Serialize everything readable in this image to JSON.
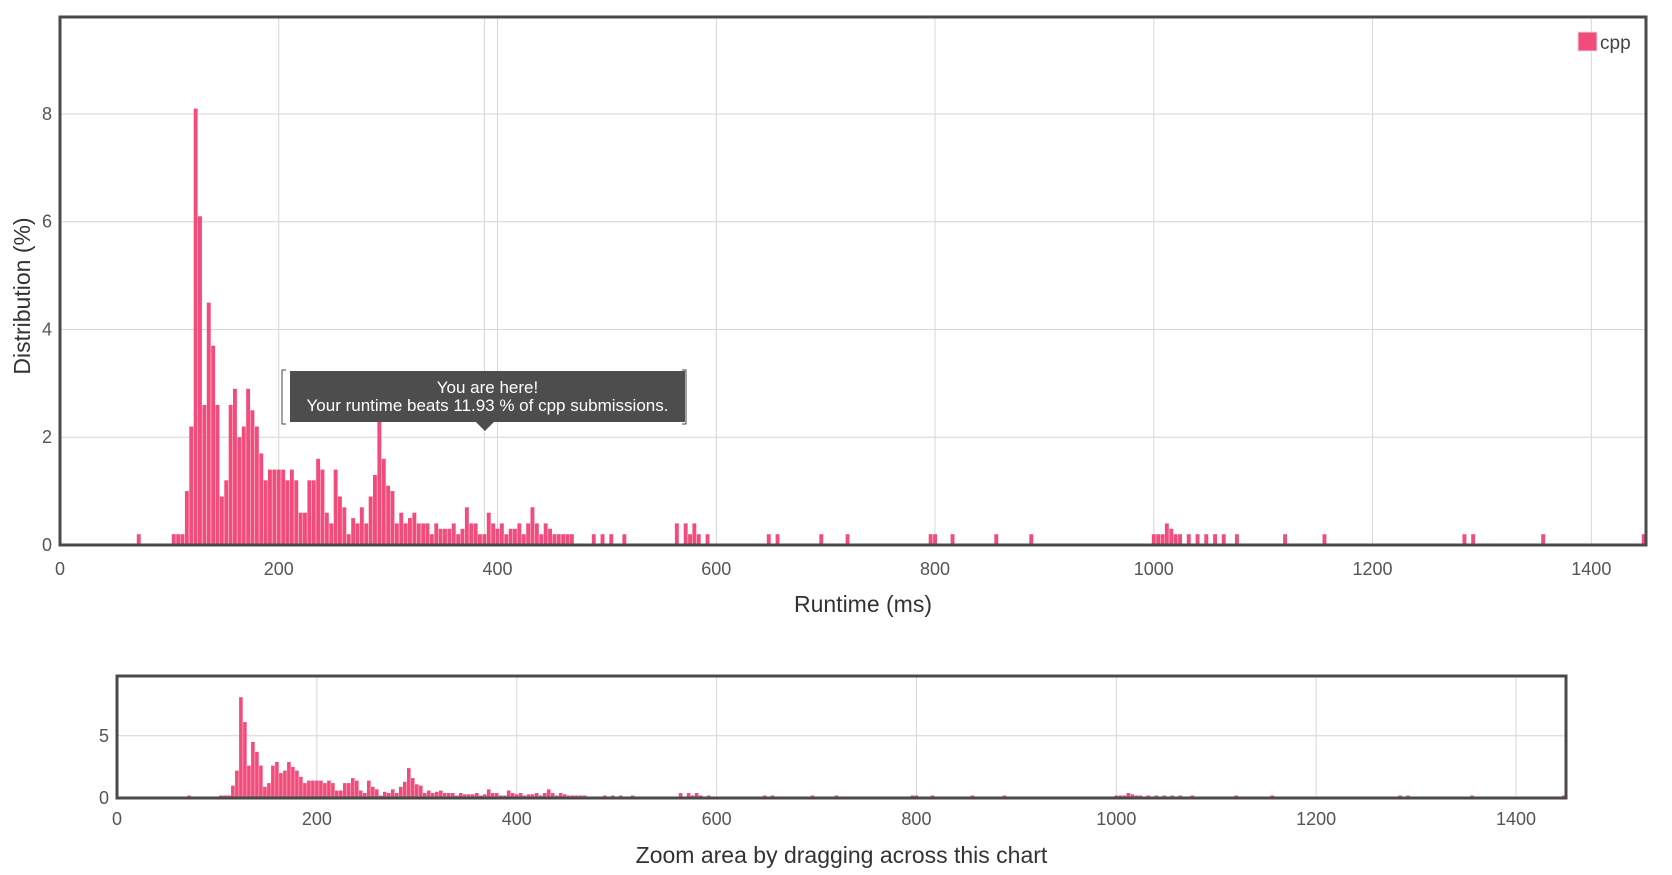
{
  "chart_data": [
    {
      "type": "bar",
      "xlabel": "Runtime (ms)",
      "ylabel": "Distribution (%)",
      "xlim": [
        0,
        1450
      ],
      "ylim": [
        0,
        9.8
      ],
      "xticks": [
        "0",
        "200",
        "400",
        "600",
        "800",
        "1000",
        "1200",
        "1400"
      ],
      "yticks": [
        "0",
        "2",
        "4",
        "6",
        "8"
      ],
      "grid": true,
      "legend": {
        "position": "top-right",
        "items": [
          {
            "label": "cpp",
            "color": "#f24c7c"
          }
        ]
      },
      "series": [
        {
          "name": "cpp",
          "color": "#f24c7c",
          "x": [
            72,
            104,
            108,
            112,
            116,
            120,
            124,
            128,
            132,
            136,
            140,
            144,
            148,
            152,
            156,
            160,
            164,
            168,
            172,
            176,
            180,
            184,
            188,
            192,
            196,
            200,
            204,
            208,
            212,
            216,
            220,
            224,
            228,
            232,
            236,
            240,
            244,
            248,
            252,
            256,
            260,
            264,
            268,
            272,
            276,
            280,
            284,
            288,
            292,
            296,
            300,
            304,
            308,
            312,
            316,
            320,
            324,
            328,
            332,
            336,
            340,
            344,
            348,
            352,
            356,
            360,
            364,
            368,
            372,
            376,
            380,
            384,
            388,
            392,
            396,
            400,
            404,
            408,
            412,
            416,
            420,
            424,
            428,
            432,
            436,
            440,
            444,
            448,
            452,
            456,
            460,
            464,
            468,
            488,
            496,
            504,
            516,
            564,
            572,
            576,
            580,
            584,
            592,
            648,
            656,
            696,
            720,
            796,
            800,
            816,
            856,
            888,
            1000,
            1004,
            1008,
            1012,
            1016,
            1020,
            1024,
            1032,
            1040,
            1048,
            1056,
            1064,
            1076,
            1120,
            1156,
            1284,
            1292,
            1356,
            1448
          ],
          "values": [
            0.2,
            0.2,
            0.2,
            0.2,
            1.0,
            2.2,
            8.1,
            6.1,
            2.6,
            4.5,
            3.7,
            2.6,
            0.9,
            1.2,
            2.6,
            2.9,
            2.0,
            2.2,
            2.9,
            2.5,
            2.2,
            1.7,
            1.2,
            1.4,
            1.4,
            1.4,
            1.4,
            1.2,
            1.4,
            1.2,
            0.6,
            0.6,
            1.2,
            1.2,
            1.6,
            1.4,
            0.6,
            0.4,
            1.4,
            0.9,
            0.7,
            0.2,
            0.5,
            0.4,
            0.7,
            0.4,
            0.9,
            1.3,
            2.4,
            1.6,
            1.1,
            1.0,
            0.4,
            0.6,
            0.4,
            0.5,
            0.6,
            0.4,
            0.4,
            0.4,
            0.2,
            0.4,
            0.3,
            0.3,
            0.3,
            0.4,
            0.2,
            0.3,
            0.7,
            0.4,
            0.4,
            0.2,
            0.2,
            0.6,
            0.4,
            0.3,
            0.4,
            0.2,
            0.3,
            0.3,
            0.4,
            0.2,
            0.4,
            0.7,
            0.4,
            0.2,
            0.4,
            0.3,
            0.2,
            0.2,
            0.2,
            0.2,
            0.2,
            0.2,
            0.2,
            0.2,
            0.2,
            0.4,
            0.4,
            0.2,
            0.4,
            0.2,
            0.2,
            0.2,
            0.2,
            0.2,
            0.2,
            0.2,
            0.2,
            0.2,
            0.2,
            0.2,
            0.2,
            0.2,
            0.2,
            0.4,
            0.3,
            0.2,
            0.2,
            0.2,
            0.2,
            0.2,
            0.2,
            0.2,
            0.2,
            0.2,
            0.2,
            0.2,
            0.2,
            0.2,
            0.2
          ]
        }
      ],
      "annotation": {
        "title": "You are here!",
        "text": "Your runtime beats 11.93 % of cpp submissions.",
        "x": 388
      }
    },
    {
      "type": "bar",
      "xlabel": "Zoom area by dragging across this chart",
      "xlim": [
        0,
        1450
      ],
      "ylim": [
        0,
        9.8
      ],
      "xticks": [
        "0",
        "200",
        "400",
        "600",
        "800",
        "1000",
        "1200",
        "1400"
      ],
      "yticks": [
        "0",
        "5"
      ],
      "grid": true
    }
  ]
}
